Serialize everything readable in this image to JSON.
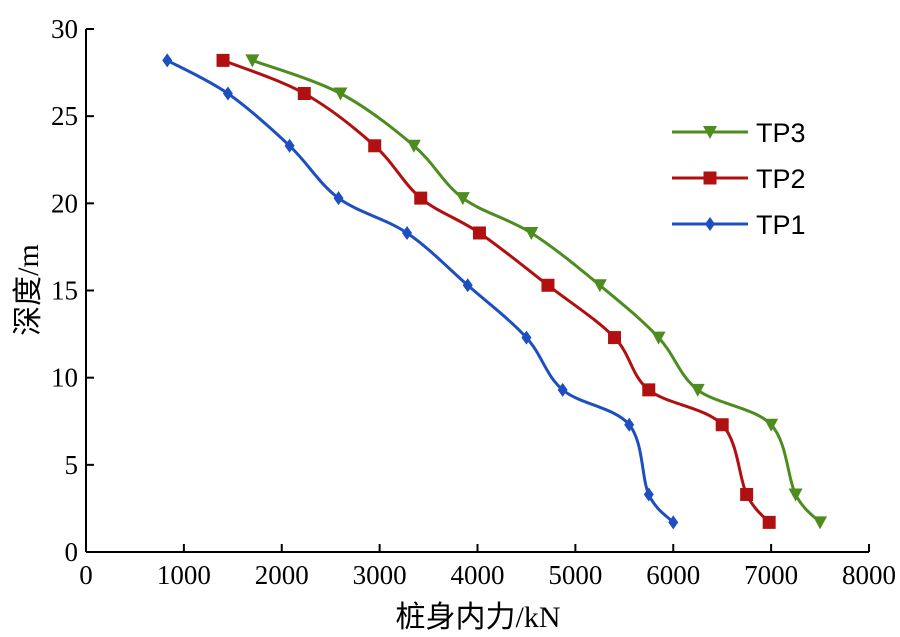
{
  "chart_data": {
    "type": "line",
    "xlabel": "桩身内力/kN",
    "ylabel": "深度/m",
    "xlim": [
      0,
      8000
    ],
    "ylim": [
      0,
      30
    ],
    "xticks": [
      0,
      1000,
      2000,
      3000,
      4000,
      5000,
      6000,
      7000,
      8000
    ],
    "yticks": [
      0,
      5,
      10,
      15,
      20,
      25,
      30
    ],
    "grid": false,
    "legend_position": "top-right",
    "series": [
      {
        "name": "TP3",
        "color": "#4d8c1f",
        "marker": "triangle-down",
        "x": [
          1700,
          2600,
          3350,
          3850,
          4550,
          5250,
          5850,
          6250,
          7000,
          7250,
          7500
        ],
        "y": [
          28.2,
          26.3,
          23.3,
          20.3,
          18.3,
          15.3,
          12.3,
          9.3,
          7.3,
          3.3,
          1.7
        ]
      },
      {
        "name": "TP2",
        "color": "#b01010",
        "marker": "square",
        "x": [
          1400,
          2230,
          2950,
          3420,
          4020,
          4720,
          5400,
          5750,
          6500,
          6750,
          6980
        ],
        "y": [
          28.2,
          26.3,
          23.3,
          20.3,
          18.3,
          15.3,
          12.3,
          9.3,
          7.3,
          3.3,
          1.7
        ]
      },
      {
        "name": "TP1",
        "color": "#1e4fc0",
        "marker": "diamond",
        "x": [
          830,
          1450,
          2080,
          2580,
          3280,
          3900,
          4500,
          4870,
          5550,
          5750,
          6000
        ],
        "y": [
          28.2,
          26.3,
          23.3,
          20.3,
          18.3,
          15.3,
          12.3,
          9.3,
          7.3,
          3.3,
          1.7
        ]
      }
    ]
  }
}
